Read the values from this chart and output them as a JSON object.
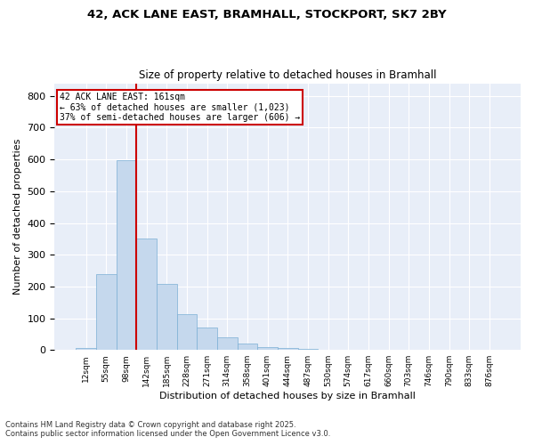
{
  "title1": "42, ACK LANE EAST, BRAMHALL, STOCKPORT, SK7 2BY",
  "title2": "Size of property relative to detached houses in Bramhall",
  "xlabel": "Distribution of detached houses by size in Bramhall",
  "ylabel": "Number of detached properties",
  "categories": [
    "12sqm",
    "55sqm",
    "98sqm",
    "142sqm",
    "185sqm",
    "228sqm",
    "271sqm",
    "314sqm",
    "358sqm",
    "401sqm",
    "444sqm",
    "487sqm",
    "530sqm",
    "574sqm",
    "617sqm",
    "660sqm",
    "703sqm",
    "746sqm",
    "790sqm",
    "833sqm",
    "876sqm"
  ],
  "values": [
    5,
    238,
    597,
    352,
    207,
    113,
    70,
    40,
    20,
    10,
    5,
    2,
    0,
    0,
    0,
    0,
    0,
    0,
    0,
    0,
    0
  ],
  "bar_color": "#c5d8ed",
  "bar_edge_color": "#7bafd4",
  "vline_color": "#cc0000",
  "annotation_title": "42 ACK LANE EAST: 161sqm",
  "annotation_line2": "← 63% of detached houses are smaller (1,023)",
  "annotation_line3": "37% of semi-detached houses are larger (606) →",
  "annotation_box_color": "#cc0000",
  "ylim": [
    0,
    840
  ],
  "yticks": [
    0,
    100,
    200,
    300,
    400,
    500,
    600,
    700,
    800
  ],
  "footnote1": "Contains HM Land Registry data © Crown copyright and database right 2025.",
  "footnote2": "Contains public sector information licensed under the Open Government Licence v3.0.",
  "plot_background": "#e8eef8"
}
